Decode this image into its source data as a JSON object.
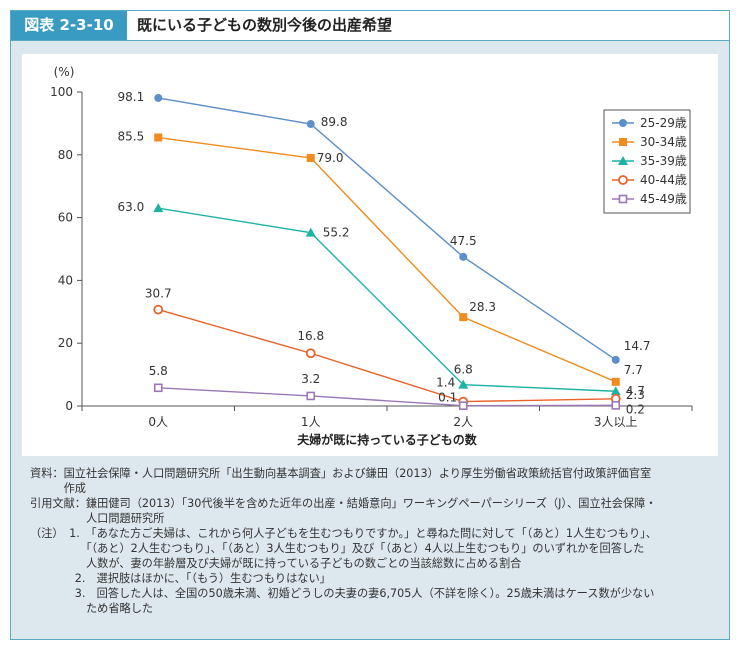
{
  "header": {
    "figure_label": "図表 2-3-10",
    "title": "既にいる子どもの数別今後の出産希望"
  },
  "chart_data": {
    "type": "line",
    "y_unit": "(%)",
    "xlabel": "夫婦が既に持っている子どもの数",
    "categories": [
      "0人",
      "1人",
      "2人",
      "3人以上"
    ],
    "ylim": [
      0,
      100
    ],
    "yticks": [
      0,
      20,
      40,
      60,
      80,
      100
    ],
    "legend_position": "top-right",
    "series": [
      {
        "name": "25-29歳",
        "color": "#5b8fc9",
        "marker": "circle",
        "values": [
          98.1,
          89.8,
          47.5,
          14.7
        ],
        "labels": [
          "98.1",
          "89.8",
          "47.5",
          "14.7"
        ]
      },
      {
        "name": "30-34歳",
        "color": "#f08c1e",
        "marker": "square",
        "values": [
          85.5,
          79.0,
          28.3,
          7.7
        ],
        "labels": [
          "85.5",
          "79.0",
          "28.3",
          "7.7"
        ]
      },
      {
        "name": "35-39歳",
        "color": "#1cb3a4",
        "marker": "triangle",
        "values": [
          63.0,
          55.2,
          6.8,
          4.7
        ],
        "labels": [
          "63.0",
          "55.2",
          "6.8",
          "4.7"
        ]
      },
      {
        "name": "40-44歳",
        "color": "#e8622a",
        "marker": "open-circle",
        "values": [
          30.7,
          16.8,
          1.4,
          2.3
        ],
        "labels": [
          "30.7",
          "16.8",
          "1.4",
          "2.3"
        ]
      },
      {
        "name": "45-49歳",
        "color": "#9a78b8",
        "marker": "open-square",
        "values": [
          5.8,
          3.2,
          0.1,
          0.2
        ],
        "labels": [
          "5.8",
          "3.2",
          "0.1",
          "0.2"
        ]
      }
    ]
  },
  "notes": [
    "資料：国立社会保障・人口問題研究所「出生動向基本調査」および鎌田（2013）より厚生労働省政策統括官付政策評価官室",
    "　　　作成",
    "引用文献：鎌田健司（2013）「30代後半を含めた近年の出産・結婚意向」ワーキングペーパーシリーズ（J）、国立社会保障・",
    "　　　　　人口問題研究所",
    "（注）　1.　「あなた方ご夫婦は、これから何人子どもを生むつもりですか。」と尋ねた問に対して「（あと）1人生むつもり」、",
    "　　　　　「（あと）2人生むつもり」、「（あと）3人生むつもり」及び「（あと）4人以上生むつもり」のいずれかを回答した",
    "　　　　　人数が、妻の年齢層及び夫婦が既に持っている子どもの数ごとの当該総数に占める割合",
    "　　　　2.　選択肢はほかに、「（もう）生むつもりはない」",
    "　　　　3.　回答した人は、全国の50歳未満、初婚どうしの夫妻の妻6,705人（不詳を除く）。25歳未満はケース数が少ない",
    "　　　　　ため省略した"
  ]
}
